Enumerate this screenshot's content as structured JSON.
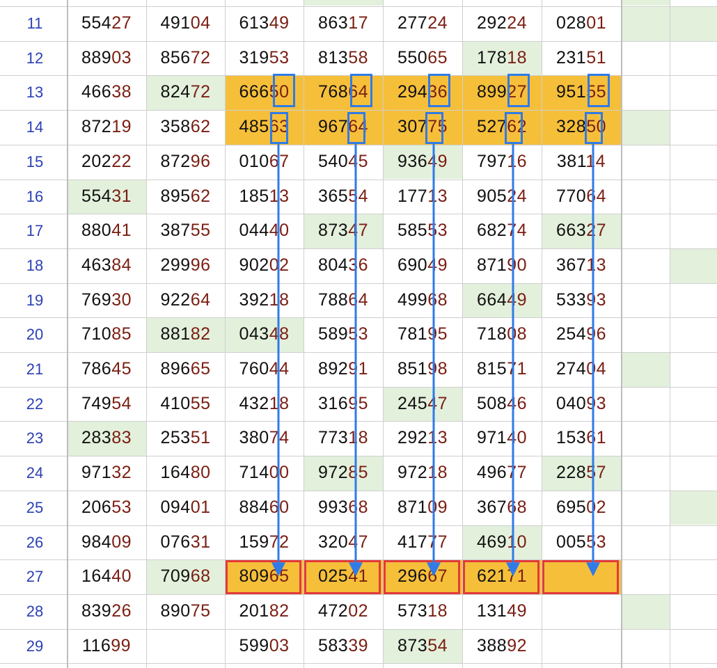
{
  "colors": {
    "green_cell": "#e3f0dc",
    "gold_cell": "#f6bf3a",
    "blue_marker": "#2f7be8",
    "red_marker": "#e23a3a",
    "row_number": "#2a3fb5",
    "head_digits": "#111111",
    "tail_digits": "#7a1e12"
  },
  "rows": [
    {
      "n": "11",
      "cells": [
        "55427",
        "49104",
        "61349",
        "86317",
        "27724",
        "29224",
        "02801"
      ],
      "green": [
        8
      ]
    },
    {
      "n": "12",
      "cells": [
        "88903",
        "85672",
        "31953",
        "81358",
        "55065",
        "17818",
        "23151"
      ],
      "green": [
        6
      ]
    },
    {
      "n": "13",
      "cells": [
        "46638",
        "82472",
        "66650",
        "76864",
        "29436",
        "89927",
        "95155"
      ],
      "green": [
        2
      ],
      "gold": [
        3,
        4,
        5,
        6,
        7
      ]
    },
    {
      "n": "14",
      "cells": [
        "87219",
        "35862",
        "48563",
        "96764",
        "30775",
        "52762",
        "32850"
      ],
      "green": [
        8
      ],
      "gold": [
        3,
        4,
        5,
        6,
        7
      ]
    },
    {
      "n": "15",
      "cells": [
        "20222",
        "87296",
        "01067",
        "54045",
        "93649",
        "79716",
        "38114"
      ],
      "green": [
        5
      ]
    },
    {
      "n": "16",
      "cells": [
        "55431",
        "89562",
        "18513",
        "36554",
        "17713",
        "90524",
        "77064"
      ],
      "green": [
        1
      ]
    },
    {
      "n": "17",
      "cells": [
        "88041",
        "38755",
        "04440",
        "87347",
        "58553",
        "68274",
        "66327"
      ],
      "green": [
        4,
        7
      ]
    },
    {
      "n": "18",
      "cells": [
        "46384",
        "29996",
        "90202",
        "80436",
        "69049",
        "87190",
        "36713"
      ],
      "green": [
        9
      ]
    },
    {
      "n": "19",
      "cells": [
        "76930",
        "92264",
        "39218",
        "78864",
        "49968",
        "66449",
        "53393"
      ],
      "green": [
        6
      ]
    },
    {
      "n": "20",
      "cells": [
        "71085",
        "88182",
        "04348",
        "58953",
        "78195",
        "71808",
        "25496"
      ],
      "green": [
        2,
        3
      ]
    },
    {
      "n": "21",
      "cells": [
        "78645",
        "89665",
        "76044",
        "89291",
        "85198",
        "81571",
        "27404"
      ],
      "green": [
        8
      ]
    },
    {
      "n": "22",
      "cells": [
        "74954",
        "41055",
        "43218",
        "31695",
        "24547",
        "50846",
        "04093"
      ],
      "green": [
        5
      ]
    },
    {
      "n": "23",
      "cells": [
        "28383",
        "25351",
        "38074",
        "77318",
        "29213",
        "97140",
        "15361"
      ],
      "green": [
        1
      ]
    },
    {
      "n": "24",
      "cells": [
        "97132",
        "16480",
        "71400",
        "97285",
        "97218",
        "49677",
        "22857"
      ],
      "green": [
        4,
        7
      ]
    },
    {
      "n": "25",
      "cells": [
        "20653",
        "09401",
        "88460",
        "99368",
        "87109",
        "36768",
        "69502"
      ],
      "green": [
        9
      ]
    },
    {
      "n": "26",
      "cells": [
        "98409",
        "07631",
        "15972",
        "32047",
        "41777",
        "46910",
        "00553"
      ],
      "green": [
        6
      ]
    },
    {
      "n": "27",
      "cells": [
        "16440",
        "70968",
        "80965",
        "02541",
        "29667",
        "62171",
        ""
      ],
      "green": [
        2
      ],
      "gold": [
        3,
        4,
        5,
        6,
        7
      ],
      "red": [
        3,
        4,
        5,
        6,
        7
      ]
    },
    {
      "n": "28",
      "cells": [
        "83926",
        "89075",
        "20182",
        "47202",
        "57318",
        "13149",
        ""
      ],
      "green": [
        8
      ]
    },
    {
      "n": "29",
      "cells": [
        "11699",
        "",
        "59903",
        "58339",
        "87354",
        "38892",
        ""
      ],
      "green": [
        5
      ]
    }
  ]
}
